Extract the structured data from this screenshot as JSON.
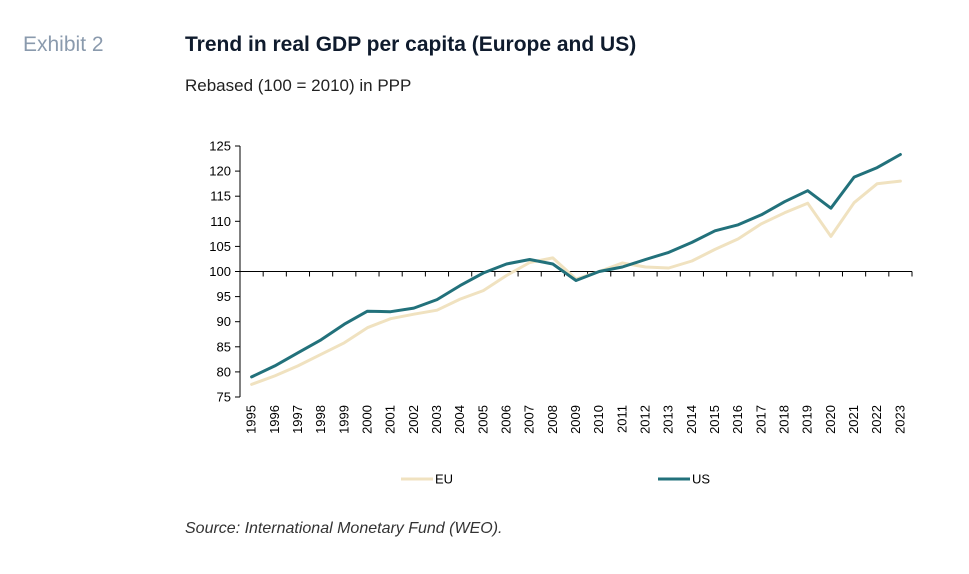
{
  "header": {
    "exhibit": "Exhibit 2",
    "title": "Trend in real GDP per capita (Europe and US)",
    "subtitle": "Rebased (100 = 2010) in PPP"
  },
  "footer": {
    "source": "Source: International Monetary Fund (WEO)."
  },
  "chart_data": {
    "type": "line",
    "title": "Trend in real GDP per capita (Europe and US)",
    "subtitle": "Rebased (100 = 2010) in PPP",
    "xlabel": "",
    "ylabel": "",
    "ylim": [
      75,
      125
    ],
    "yticks": [
      75,
      80,
      85,
      90,
      95,
      100,
      105,
      110,
      115,
      120,
      125
    ],
    "grid": false,
    "legend_position": "bottom",
    "categories": [
      "1995",
      "1996",
      "1997",
      "1998",
      "1999",
      "2000",
      "2001",
      "2002",
      "2003",
      "2004",
      "2005",
      "2006",
      "2007",
      "2008",
      "2009",
      "2010",
      "2011",
      "2012",
      "2013",
      "2014",
      "2015",
      "2016",
      "2017",
      "2018",
      "2019",
      "2020",
      "2021",
      "2022",
      "2023"
    ],
    "series": [
      {
        "name": "EU",
        "color": "#f0e2c0",
        "values": [
          77.5,
          79.2,
          81.2,
          83.5,
          85.8,
          88.8,
          90.6,
          91.5,
          92.3,
          94.5,
          96.2,
          99.2,
          101.8,
          102.7,
          98.5,
          100.0,
          101.7,
          100.9,
          100.7,
          102.1,
          104.4,
          106.5,
          109.5,
          111.7,
          113.6,
          107.0,
          113.7,
          117.5,
          118.0
        ]
      },
      {
        "name": "US",
        "color": "#22717b",
        "values": [
          79.0,
          81.2,
          83.8,
          86.4,
          89.5,
          92.1,
          92.0,
          92.7,
          94.4,
          97.2,
          99.7,
          101.5,
          102.4,
          101.5,
          98.2,
          100.0,
          100.9,
          102.4,
          103.8,
          105.8,
          108.1,
          109.3,
          111.3,
          113.9,
          116.1,
          112.6,
          118.8,
          120.7,
          123.3
        ]
      }
    ]
  }
}
